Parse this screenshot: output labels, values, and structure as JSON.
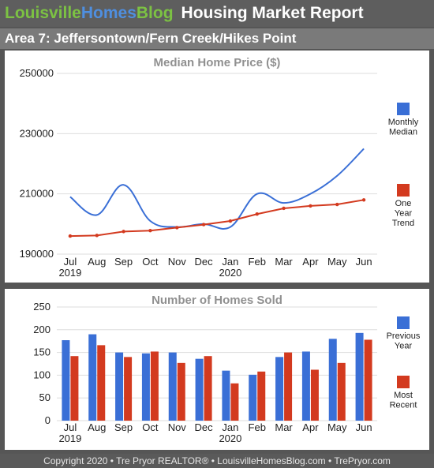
{
  "header": {
    "brand_part1": "Louisville",
    "brand_part2": "Homes",
    "brand_part3": "Blog",
    "report_title": "Housing Market Report",
    "area_title": "Area 7: Jeffersontown/Fern Creek/Hikes Point"
  },
  "footer": {
    "text": "Copyright 2020 • Tre Pryor REALTOR® • LouisvilleHomesBlog.com • TrePryor.com"
  },
  "colors": {
    "blue": "#3a6fd6",
    "red": "#d33a1f",
    "brand_green": "#7cc243",
    "brand_blue": "#4f8fe0"
  },
  "chart_data": [
    {
      "type": "line",
      "title": "Median Home Price ($)",
      "categories": [
        "Jul",
        "Aug",
        "Sep",
        "Oct",
        "Nov",
        "Dec",
        "Jan",
        "Feb",
        "Mar",
        "Apr",
        "May",
        "Jun"
      ],
      "year_labels": [
        {
          "index": 0,
          "text": "2019"
        },
        {
          "index": 6,
          "text": "2020"
        }
      ],
      "ylim": [
        190000,
        250000
      ],
      "yticks": [
        190000,
        210000,
        230000,
        250000
      ],
      "grid": true,
      "legend_position": "right",
      "series": [
        {
          "name": "Monthly Median",
          "legend_lines": [
            "Monthly",
            "Median"
          ],
          "color": "#3a6fd6",
          "smooth": true,
          "markers": false,
          "values": [
            209000,
            203000,
            213000,
            201000,
            199000,
            200000,
            199000,
            210000,
            207000,
            210000,
            216000,
            225000
          ]
        },
        {
          "name": "One Year Trend",
          "legend_lines": [
            "One",
            "Year",
            "Trend"
          ],
          "color": "#d33a1f",
          "smooth": false,
          "markers": true,
          "values": [
            196000,
            196200,
            197500,
            197800,
            198800,
            199800,
            201000,
            203300,
            205200,
            206000,
            206500,
            208000
          ]
        }
      ]
    },
    {
      "type": "bar",
      "title": "Number of Homes Sold",
      "categories": [
        "Jul",
        "Aug",
        "Sep",
        "Oct",
        "Nov",
        "Dec",
        "Jan",
        "Feb",
        "Mar",
        "Apr",
        "May",
        "Jun"
      ],
      "year_labels": [
        {
          "index": 0,
          "text": "2019"
        },
        {
          "index": 6,
          "text": "2020"
        }
      ],
      "ylim": [
        0,
        250
      ],
      "yticks": [
        0,
        50,
        100,
        150,
        200,
        250
      ],
      "grid": true,
      "legend_position": "right",
      "series": [
        {
          "name": "Previous Year",
          "legend_lines": [
            "Previous",
            "Year"
          ],
          "color": "#3a6fd6",
          "values": [
            177,
            190,
            150,
            148,
            150,
            136,
            110,
            101,
            140,
            152,
            180,
            193
          ]
        },
        {
          "name": "Most Recent",
          "legend_lines": [
            "Most",
            "Recent"
          ],
          "color": "#d33a1f",
          "values": [
            142,
            166,
            140,
            152,
            127,
            142,
            82,
            108,
            150,
            112,
            127,
            178
          ]
        }
      ]
    }
  ]
}
